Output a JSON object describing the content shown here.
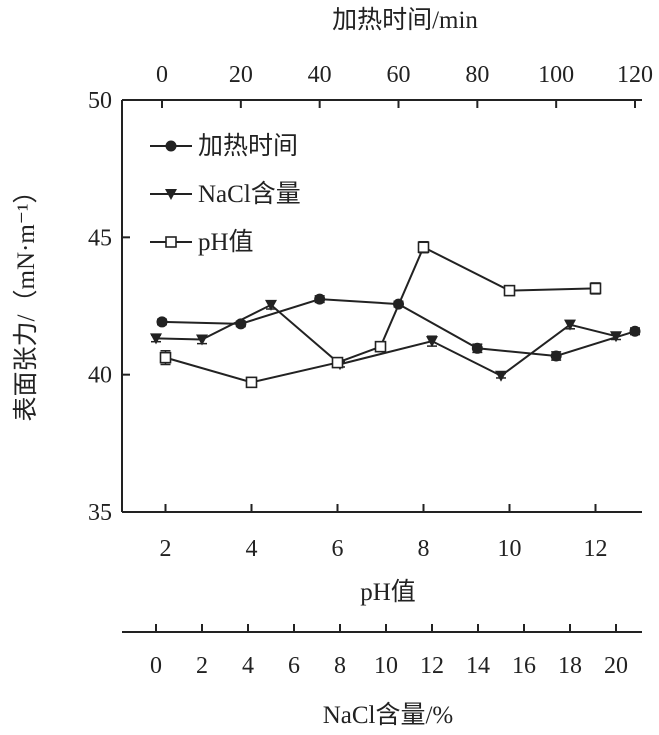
{
  "chart_data": {
    "type": "line",
    "ylabel": "表面张力/（mN·m⁻¹）",
    "ylim": [
      35,
      50
    ],
    "yticks": [
      "35",
      "40",
      "45",
      "50"
    ],
    "axes": {
      "top": {
        "label": "加热时间/min",
        "range": [
          0,
          120
        ],
        "ticks": [
          "0",
          "20",
          "40",
          "60",
          "80",
          "100",
          "120"
        ]
      },
      "bottom_ph": {
        "label": "pH值",
        "range": [
          2,
          12
        ],
        "ticks": [
          "2",
          "4",
          "6",
          "8",
          "10",
          "12"
        ]
      },
      "bottom_nacl": {
        "label": "NaCl含量/%",
        "range": [
          0,
          20
        ],
        "ticks": [
          "0",
          "2",
          "4",
          "6",
          "8",
          "10",
          "12",
          "14",
          "16",
          "18",
          "20"
        ]
      }
    },
    "series": [
      {
        "name": "加热时间",
        "axis": "top",
        "marker": "filled-circle",
        "x": [
          0,
          20,
          40,
          60,
          80,
          100,
          120
        ],
        "y": [
          41.92,
          41.85,
          42.75,
          42.57,
          40.96,
          40.68,
          41.58
        ],
        "err": [
          0.1,
          0.1,
          0.12,
          0.1,
          0.15,
          0.15,
          0.12
        ]
      },
      {
        "name": "NaCl含量",
        "axis": "bottom_nacl",
        "marker": "filled-triangle-down",
        "x": [
          0,
          2,
          5,
          8,
          12,
          15,
          18,
          20
        ],
        "y": [
          41.32,
          41.28,
          42.54,
          40.38,
          41.22,
          39.96,
          41.82,
          41.4
        ],
        "err": [
          0.12,
          0.15,
          0.15,
          0.1,
          0.18,
          0.08,
          0.15,
          0.12
        ]
      },
      {
        "name": "pH值",
        "axis": "bottom_ph",
        "marker": "open-square",
        "x": [
          2,
          4,
          6,
          7,
          8,
          10,
          12
        ],
        "y": [
          40.62,
          39.72,
          40.44,
          41.02,
          44.64,
          43.06,
          43.14
        ],
        "err": [
          0.25,
          0.06,
          0.1,
          0.1,
          0.2,
          0.12,
          0.2
        ]
      }
    ],
    "legend": {
      "placement": "top-left",
      "entries": [
        "加热时间",
        "NaCl含量",
        "pH值"
      ]
    }
  }
}
